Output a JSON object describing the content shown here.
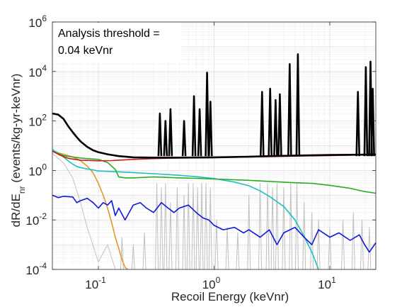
{
  "chart_data": {
    "type": "line",
    "title": "",
    "xlabel": "Recoil Energy (keVnr)",
    "ylabel": "dR/dE",
    "ylabel_sub": "nr",
    "ylabel_rest": " (events/kg-yr-keVnr)",
    "xscale": "log",
    "yscale": "log",
    "xlim": [
      0.04,
      25
    ],
    "ylim": [
      0.0001,
      1000000
    ],
    "grid": true,
    "annotation_line1": "Analysis threshold =",
    "annotation_line2": "0.04 keVnr",
    "x_ticks": [
      {
        "value": 0.1,
        "base": "10",
        "exp": "-1"
      },
      {
        "value": 1,
        "base": "10",
        "exp": "0"
      },
      {
        "value": 10,
        "base": "10",
        "exp": "1"
      }
    ],
    "y_ticks": [
      {
        "value": 0.0001,
        "base": "10",
        "exp": "-4"
      },
      {
        "value": 0.01,
        "base": "10",
        "exp": "-2"
      },
      {
        "value": 1,
        "base": "10",
        "exp": "0"
      },
      {
        "value": 100,
        "base": "10",
        "exp": "2"
      },
      {
        "value": 10000,
        "base": "10",
        "exp": "4"
      },
      {
        "value": 1000000,
        "base": "10",
        "exp": "6"
      }
    ],
    "series": [
      {
        "color": "#c0c0c0",
        "x": [
          0.04,
          0.05,
          0.06,
          0.07,
          0.08,
          0.1,
          0.12,
          0.14
        ],
        "y": [
          5,
          2,
          0.5,
          0.05,
          0.005,
          0.0002,
          0.001,
          0.0001
        ],
        "spikes_x": [
          0.16,
          0.2,
          0.25,
          0.32,
          0.35,
          0.38,
          0.42,
          0.48,
          0.55,
          0.6,
          0.66,
          0.72,
          0.78,
          0.85,
          0.93,
          1.05,
          1.3,
          1.6,
          2.0,
          2.5,
          2.9,
          3.2,
          3.5,
          4.0,
          4.6,
          5.2,
          6.0,
          7.0,
          8.0,
          10.0,
          13.0,
          16.0,
          19.0,
          22.0
        ],
        "spikes_y": [
          0.002,
          0.001,
          0.003,
          0.3,
          0.2,
          0.3,
          0.05,
          0.2,
          0.1,
          0.3,
          0.3,
          0.2,
          0.3,
          0.3,
          0.2,
          0.01,
          0.005,
          0.003,
          0.1,
          0.3,
          0.3,
          0.2,
          0.3,
          0.2,
          0.3,
          0.3,
          0.05,
          0.02,
          0.01,
          0.005,
          0.01,
          0.02,
          0.01,
          0.005
        ]
      },
      {
        "color": "#e8952b",
        "x": [
          0.04,
          0.05,
          0.06,
          0.07,
          0.08,
          0.09,
          0.1,
          0.11,
          0.12,
          0.13,
          0.14,
          0.15,
          0.16,
          0.17,
          0.18
        ],
        "y": [
          6,
          4.5,
          3.5,
          2.5,
          1.5,
          0.8,
          0.3,
          0.1,
          0.03,
          0.008,
          0.002,
          0.0007,
          0.00025,
          0.00012,
          0.0001
        ]
      },
      {
        "color": "#1fbfc0",
        "x": [
          0.04,
          0.045,
          0.05,
          0.055,
          0.06,
          0.065,
          0.07,
          0.08,
          0.09,
          0.1,
          0.15,
          0.2,
          0.3,
          0.5,
          0.7,
          1,
          1.5,
          2,
          2.5,
          3,
          4,
          5,
          6,
          7,
          8
        ],
        "y": [
          7,
          5,
          3.5,
          2.4,
          1.8,
          1.45,
          1.3,
          1.15,
          1.05,
          0.95,
          0.88,
          0.82,
          0.74,
          0.64,
          0.56,
          0.47,
          0.34,
          0.24,
          0.15,
          0.09,
          0.035,
          0.01,
          0.0022,
          0.0005,
          0.0001
        ]
      },
      {
        "color": "#27ad20",
        "x": [
          0.04,
          0.05,
          0.06,
          0.07,
          0.08,
          0.1,
          0.12,
          0.14,
          0.15,
          0.17,
          0.2,
          0.3,
          0.5,
          0.7,
          1,
          2,
          3,
          5,
          7,
          10,
          15,
          20,
          25
        ],
        "y": [
          6,
          4,
          3.5,
          3.2,
          3,
          2.8,
          2.1,
          1.1,
          0.55,
          0.5,
          0.5,
          0.55,
          0.5,
          0.48,
          0.45,
          0.4,
          0.36,
          0.32,
          0.3,
          0.25,
          0.19,
          0.14,
          0.12
        ]
      },
      {
        "color": "#0f18d8",
        "x": [
          0.04,
          0.045,
          0.05,
          0.06,
          0.065,
          0.07,
          0.08,
          0.09,
          0.1,
          0.11,
          0.12,
          0.13,
          0.14,
          0.15,
          0.17,
          0.2,
          0.23,
          0.26,
          0.3,
          0.35,
          0.4,
          0.45,
          0.5,
          0.6,
          0.7,
          0.8,
          0.9,
          1,
          1.2,
          1.5,
          1.8,
          2,
          2.5,
          3,
          3.5,
          4,
          5,
          6,
          7,
          8,
          10,
          12,
          15,
          18,
          20,
          22,
          25
        ],
        "y": [
          0.1,
          0.08,
          0.09,
          0.085,
          0.05,
          0.06,
          0.075,
          0.05,
          0.03,
          0.05,
          0.04,
          0.06,
          0.015,
          0.03,
          0.01,
          0.04,
          0.05,
          0.03,
          0.02,
          0.05,
          0.03,
          0.02,
          0.03,
          0.04,
          0.02,
          0.012,
          0.01,
          0.006,
          0.004,
          0.005,
          0.003,
          0.004,
          0.002,
          0.004,
          0.001,
          0.003,
          0.005,
          0.002,
          0.001,
          0.004,
          0.002,
          0.003,
          0.0015,
          0.0025,
          0.001,
          0.0005,
          0.0012
        ]
      },
      {
        "color": "#cc1a1a",
        "x": [
          0.04,
          0.045,
          0.05,
          0.055,
          0.06,
          0.07,
          0.08,
          0.1,
          0.13,
          0.15,
          0.2,
          0.3,
          0.5,
          1,
          2,
          3,
          5,
          10,
          15,
          20,
          25
        ],
        "y": [
          6,
          4.5,
          3.6,
          3.1,
          2.9,
          2.6,
          2.55,
          2.45,
          2.5,
          2.6,
          2.8,
          3.0,
          3.2,
          3.3,
          3.5,
          3.6,
          3.8,
          4.0,
          4.1,
          4.2,
          4.2
        ]
      },
      {
        "color": "#000000",
        "x": [
          0.04,
          0.045,
          0.05,
          0.055,
          0.06,
          0.065,
          0.07,
          0.08,
          0.09,
          0.1,
          0.12,
          0.15,
          0.2,
          0.3,
          0.5,
          1,
          2,
          3,
          5,
          10,
          25
        ],
        "y": [
          200,
          180,
          120,
          60,
          35,
          22,
          15,
          9,
          6.5,
          5.5,
          4.5,
          3.8,
          3.4,
          3.3,
          3.3,
          3.4,
          3.6,
          3.8,
          4.0,
          4.2,
          4.4
        ],
        "spikes_x": [
          0.34,
          0.38,
          0.42,
          0.55,
          0.67,
          0.75,
          0.87,
          0.93,
          2.6,
          3.05,
          3.4,
          3.7,
          4.5,
          5.3,
          17.5,
          20.5,
          22.5,
          23.5
        ],
        "spikes_y": [
          200,
          100,
          300,
          100,
          1000,
          300,
          9000,
          600,
          1500,
          2000,
          700,
          1200,
          20000,
          50000,
          1500,
          15000,
          25000,
          2000
        ]
      }
    ]
  }
}
